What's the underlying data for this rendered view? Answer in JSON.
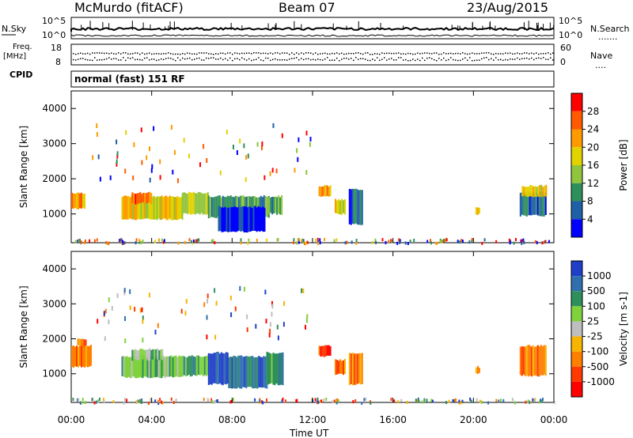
{
  "header": {
    "station": "McMurdo (fitACF)",
    "beam": "Beam 07",
    "date": "23/Aug/2015"
  },
  "top_panels": {
    "nsky_label": "N.Sky",
    "nsearch_label": "N.Search",
    "freq_label_line1": "Freq.",
    "freq_label_line2": "[MHz]",
    "nave_label": "Nave",
    "cpid_label": "CPID",
    "cpid_text": "normal (fast) 151 RF",
    "noise_ticks_left": [
      "10^5",
      "10^0"
    ],
    "noise_ticks_right": [
      "10^5",
      "10^0"
    ],
    "freq_ticks": [
      "18",
      "8"
    ],
    "nave_ticks": [
      "60",
      "0"
    ]
  },
  "chart_data": [
    {
      "type": "heatmap",
      "name": "power",
      "ylabel": "Slant Range [km]",
      "ylim": [
        180,
        4500
      ],
      "yticks": [
        1000,
        2000,
        3000,
        4000
      ],
      "colorbar_label": "Power [dB]",
      "colorbar_ticks": [
        "28",
        "24",
        "20",
        "16",
        "12",
        "8",
        "4"
      ],
      "colorbar_colors": [
        "#ff0000",
        "#ff5a00",
        "#ff9b00",
        "#e1d200",
        "#8fc43c",
        "#2f8f5c",
        "#1f5fa6",
        "#0000ff"
      ],
      "regions": [
        {
          "t0": 0.0,
          "t1": 0.7,
          "r0": 1150,
          "r1": 1600,
          "level": 2
        },
        {
          "t0": 2.5,
          "t1": 5.5,
          "r0": 850,
          "r1": 1500,
          "level": 3
        },
        {
          "t0": 3.0,
          "t1": 4.0,
          "r0": 1300,
          "r1": 1600,
          "level": 1
        },
        {
          "t0": 5.5,
          "t1": 6.8,
          "r0": 1000,
          "r1": 1600,
          "level": 4
        },
        {
          "t0": 6.8,
          "t1": 9.8,
          "r0": 900,
          "r1": 1500,
          "level": 5
        },
        {
          "t0": 7.3,
          "t1": 9.6,
          "r0": 500,
          "r1": 1200,
          "level": 7
        },
        {
          "t0": 9.8,
          "t1": 10.5,
          "r0": 1000,
          "r1": 1500,
          "level": 5
        },
        {
          "t0": 12.3,
          "t1": 12.9,
          "r0": 1500,
          "r1": 1800,
          "level": 2
        },
        {
          "t0": 13.1,
          "t1": 13.6,
          "r0": 1000,
          "r1": 1400,
          "level": 3
        },
        {
          "t0": 13.8,
          "t1": 14.5,
          "r0": 700,
          "r1": 1700,
          "level": 6
        },
        {
          "t0": 20.1,
          "t1": 20.3,
          "r0": 1000,
          "r1": 1200,
          "level": 3
        },
        {
          "t0": 22.3,
          "t1": 23.6,
          "r0": 950,
          "r1": 1600,
          "level": 6
        },
        {
          "t0": 22.4,
          "t1": 23.6,
          "r0": 1500,
          "r1": 1800,
          "level": 3
        }
      ]
    },
    {
      "type": "heatmap",
      "name": "velocity",
      "xlabel": "Time UT",
      "ylabel": "Slant Range [km]",
      "ylim": [
        180,
        4500
      ],
      "yticks": [
        1000,
        2000,
        3000,
        4000
      ],
      "xticks": [
        "00:00",
        "04:00",
        "08:00",
        "12:00",
        "16:00",
        "20:00",
        "00:00"
      ],
      "xlim_hours": [
        0,
        24
      ],
      "colorbar_label": "Velocity [m s-1]",
      "colorbar_ticks": [
        "1000",
        "500",
        "100",
        "25",
        "-25",
        "-100",
        "-500",
        "-1000"
      ],
      "colorbar_colors": [
        "#1f3fc8",
        "#2f6fb0",
        "#2f8f5c",
        "#7fd23c",
        "#bebebe",
        "#f7b500",
        "#ff7f00",
        "#ff3a00",
        "#ff0000"
      ],
      "regions": [
        {
          "t0": 0.0,
          "t1": 1.0,
          "r0": 1200,
          "r1": 1800,
          "level": 6
        },
        {
          "t0": 0.3,
          "t1": 0.7,
          "r0": 1800,
          "r1": 2000,
          "level": 6
        },
        {
          "t0": 2.5,
          "t1": 5.5,
          "r0": 900,
          "r1": 1500,
          "level": 3
        },
        {
          "t0": 3.0,
          "t1": 4.5,
          "r0": 1400,
          "r1": 1700,
          "level": 3
        },
        {
          "t0": 5.5,
          "t1": 6.8,
          "r0": 950,
          "r1": 1500,
          "level": 2
        },
        {
          "t0": 6.8,
          "t1": 7.8,
          "r0": 700,
          "r1": 1600,
          "level": 0
        },
        {
          "t0": 7.8,
          "t1": 9.7,
          "r0": 600,
          "r1": 1500,
          "level": 1
        },
        {
          "t0": 9.7,
          "t1": 10.5,
          "r0": 700,
          "r1": 1600,
          "level": 2
        },
        {
          "t0": 12.3,
          "t1": 12.9,
          "r0": 1500,
          "r1": 1800,
          "level": 7
        },
        {
          "t0": 13.1,
          "t1": 13.6,
          "r0": 1000,
          "r1": 1400,
          "level": 6
        },
        {
          "t0": 13.8,
          "t1": 14.5,
          "r0": 700,
          "r1": 1600,
          "level": 6
        },
        {
          "t0": 20.1,
          "t1": 20.3,
          "r0": 1000,
          "r1": 1200,
          "level": 6
        },
        {
          "t0": 22.3,
          "t1": 23.6,
          "r0": 950,
          "r1": 1800,
          "level": 6
        }
      ]
    }
  ]
}
